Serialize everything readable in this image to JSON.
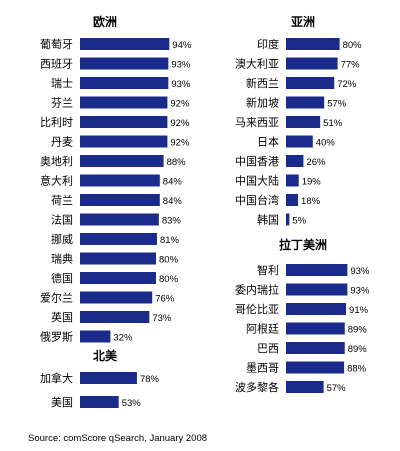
{
  "source_note": "Source:  comScore qSearch, January 2008",
  "bar_color": "#1a2b8c",
  "chart_data": [
    {
      "type": "bar",
      "orientation": "horizontal",
      "title": "欧洲",
      "categories": [
        "葡萄牙",
        "西班牙",
        "瑞士",
        "芬兰",
        "比利时",
        "丹麦",
        "奥地利",
        "意大利",
        "荷兰",
        "法国",
        "挪威",
        "瑞典",
        "德国",
        "爱尔兰",
        "英国",
        "俄罗斯"
      ],
      "values": [
        94,
        93,
        93,
        92,
        92,
        92,
        88,
        84,
        84,
        83,
        81,
        80,
        80,
        76,
        73,
        32
      ],
      "value_labels": [
        "94%",
        "93%",
        "93%",
        "92%",
        "92%",
        "92%",
        "88%",
        "84%",
        "84%",
        "83%",
        "81%",
        "80%",
        "80%",
        "76%",
        "73%",
        "32%"
      ]
    },
    {
      "type": "bar",
      "orientation": "horizontal",
      "title": "北美",
      "categories": [
        "加拿大",
        "美国"
      ],
      "values": [
        78,
        53
      ],
      "value_labels": [
        "78%",
        "53%"
      ]
    },
    {
      "type": "bar",
      "orientation": "horizontal",
      "title": "亚洲",
      "categories": [
        "印度",
        "澳大利亚",
        "新西兰",
        "新加坡",
        "马来西亚",
        "日本",
        "中国香港",
        "中国大陆",
        "中国台湾",
        "韩国"
      ],
      "values": [
        80,
        77,
        72,
        57,
        51,
        40,
        26,
        19,
        18,
        5
      ],
      "value_labels": [
        "80%",
        "77%",
        "72%",
        "57%",
        "51%",
        "40%",
        "26%",
        "19%",
        "18%",
        "5%"
      ]
    },
    {
      "type": "bar",
      "orientation": "horizontal",
      "title": "拉丁美洲",
      "categories": [
        "智利",
        "委内瑞拉",
        "哥伦比亚",
        "阿根廷",
        "巴西",
        "墨西哥",
        "波多黎各"
      ],
      "values": [
        93,
        93,
        91,
        89,
        89,
        88,
        57
      ],
      "value_labels": [
        "93%",
        "93%",
        "91%",
        "89%",
        "89%",
        "88%",
        "57%"
      ]
    }
  ]
}
